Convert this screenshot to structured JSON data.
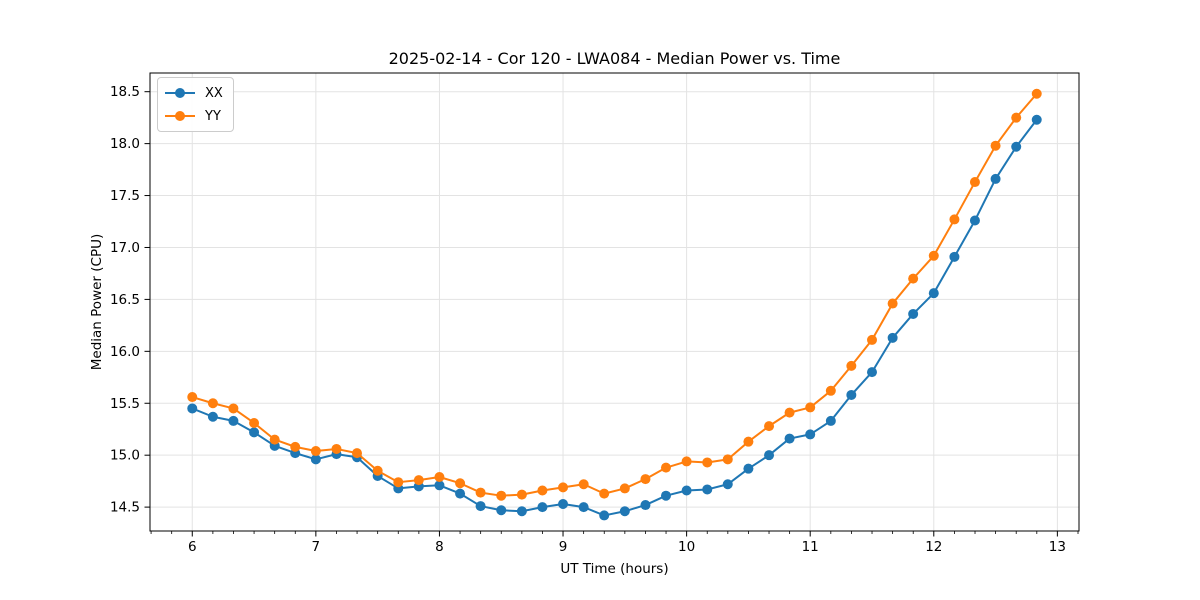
{
  "chart_data": {
    "type": "line",
    "title": "2025-02-14 - Cor 120 - LWA084 - Median Power vs. Time",
    "xlabel": "UT Time (hours)",
    "ylabel": "Median Power (CPU)",
    "xlim": [
      5.658,
      13.175
    ],
    "ylim": [
      14.27,
      18.68
    ],
    "x_ticks": [
      6,
      7,
      8,
      9,
      10,
      11,
      12,
      13
    ],
    "x_minor_interval": 0.16667,
    "y_ticks": [
      14.5,
      15.0,
      15.5,
      16.0,
      16.5,
      17.0,
      17.5,
      18.0,
      18.5
    ],
    "grid": true,
    "legend_position": "upper-left",
    "x": [
      6.0,
      6.167,
      6.333,
      6.5,
      6.667,
      6.833,
      7.0,
      7.167,
      7.333,
      7.5,
      7.667,
      7.833,
      8.0,
      8.167,
      8.333,
      8.5,
      8.667,
      8.833,
      9.0,
      9.167,
      9.333,
      9.5,
      9.667,
      9.833,
      10.0,
      10.167,
      10.333,
      10.5,
      10.667,
      10.833,
      11.0,
      11.167,
      11.333,
      11.5,
      11.667,
      11.833,
      12.0,
      12.167,
      12.333,
      12.5,
      12.667,
      12.833
    ],
    "series": [
      {
        "name": "XX",
        "color": "#1f77b4",
        "values": [
          15.45,
          15.37,
          15.33,
          15.22,
          15.09,
          15.02,
          14.96,
          15.01,
          14.98,
          14.8,
          14.68,
          14.7,
          14.71,
          14.63,
          14.51,
          14.47,
          14.46,
          14.5,
          14.53,
          14.5,
          14.42,
          14.46,
          14.52,
          14.61,
          14.66,
          14.67,
          14.72,
          14.87,
          15.0,
          15.16,
          15.2,
          15.33,
          15.58,
          15.8,
          16.13,
          16.36,
          16.56,
          16.91,
          17.26,
          17.66,
          17.97,
          18.23
        ]
      },
      {
        "name": "YY",
        "color": "#ff7f0e",
        "values": [
          15.56,
          15.5,
          15.45,
          15.31,
          15.15,
          15.08,
          15.04,
          15.06,
          15.02,
          14.85,
          14.74,
          14.76,
          14.79,
          14.73,
          14.64,
          14.61,
          14.62,
          14.66,
          14.69,
          14.72,
          14.63,
          14.68,
          14.77,
          14.88,
          14.94,
          14.93,
          14.96,
          15.13,
          15.28,
          15.41,
          15.46,
          15.62,
          15.86,
          16.11,
          16.46,
          16.7,
          16.92,
          17.27,
          17.63,
          17.98,
          18.25,
          18.48
        ]
      }
    ]
  }
}
